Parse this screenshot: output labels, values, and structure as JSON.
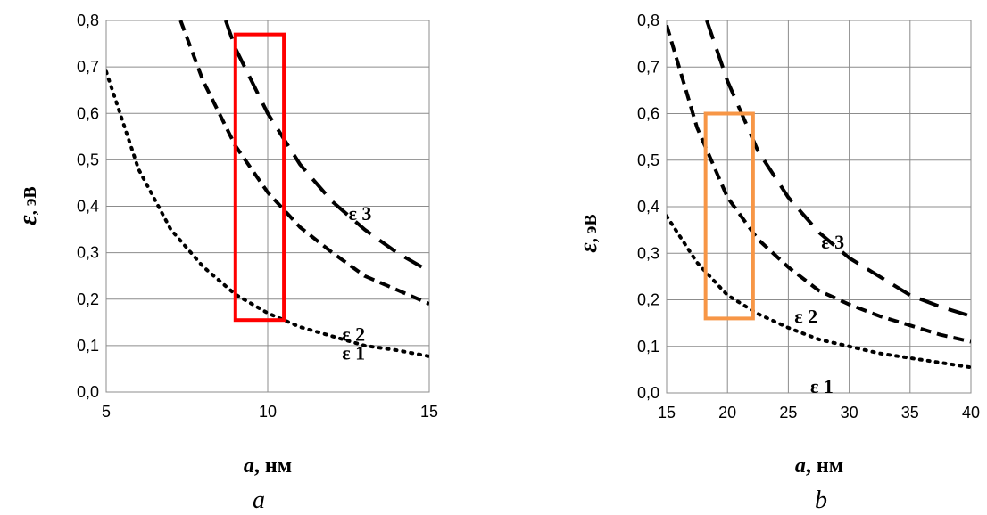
{
  "chart_data": [
    {
      "type": "line",
      "panel_caption": "a",
      "xlabel_var": "a",
      "xlabel_unit": ", нм",
      "ylabel_var": "ε",
      "ylabel_unit": ", эВ",
      "xlim": [
        5,
        15
      ],
      "ylim": [
        0,
        0.8
      ],
      "xticks": [
        5,
        10,
        15
      ],
      "xtick_labels": [
        "5",
        "10",
        "15"
      ],
      "yticks": [
        0,
        0.1,
        0.2,
        0.3,
        0.4,
        0.5,
        0.6,
        0.7,
        0.8
      ],
      "ytick_labels": [
        "0,0",
        "0,1",
        "0,2",
        "0,3",
        "0,4",
        "0,5",
        "0,6",
        "0,7",
        "0,8"
      ],
      "grid": true,
      "series": [
        {
          "name": "ε 1",
          "style": "dotted",
          "x": [
            5,
            6,
            7,
            8,
            9,
            10,
            11,
            12,
            13,
            14,
            15
          ],
          "y": [
            0.69,
            0.48,
            0.35,
            0.27,
            0.21,
            0.17,
            0.14,
            0.12,
            0.1,
            0.09,
            0.077
          ]
        },
        {
          "name": "ε 2",
          "style": "dashed",
          "x": [
            7.3,
            8,
            9,
            10,
            11,
            12,
            13,
            14,
            15
          ],
          "y": [
            0.8,
            0.67,
            0.53,
            0.43,
            0.355,
            0.3,
            0.25,
            0.22,
            0.19
          ]
        },
        {
          "name": "ε 3",
          "style": "long-dashed",
          "x": [
            8.7,
            9,
            10,
            11,
            12,
            13,
            14,
            15
          ],
          "y": [
            0.8,
            0.74,
            0.6,
            0.49,
            0.41,
            0.35,
            0.3,
            0.26
          ]
        }
      ],
      "highlight_box": {
        "x": [
          9,
          10.5
        ],
        "y": [
          0.155,
          0.77
        ],
        "color": "#ff0000"
      },
      "series_labels": [
        {
          "text": "ε 3",
          "x": 12.5,
          "y": 0.37
        },
        {
          "text": "ε 2",
          "x": 12.3,
          "y": 0.11
        },
        {
          "text": "ε 1",
          "x": 12.3,
          "y": 0.07
        }
      ]
    },
    {
      "type": "line",
      "panel_caption": "b",
      "xlabel_var": "a",
      "xlabel_unit": ", нм",
      "ylabel_var": "ε",
      "ylabel_unit": ", эВ",
      "xlim": [
        15,
        40
      ],
      "ylim": [
        0,
        0.8
      ],
      "xticks": [
        15,
        20,
        25,
        30,
        35,
        40
      ],
      "xtick_labels": [
        "15",
        "20",
        "25",
        "30",
        "35",
        "40"
      ],
      "yticks": [
        0,
        0.1,
        0.2,
        0.3,
        0.4,
        0.5,
        0.6,
        0.7,
        0.8
      ],
      "ytick_labels": [
        "0,0",
        "0,1",
        "0,2",
        "0,3",
        "0,4",
        "0,5",
        "0,6",
        "0,7",
        "0,8"
      ],
      "grid": true,
      "series": [
        {
          "name": "ε 1",
          "style": "dotted",
          "x": [
            15,
            17.5,
            20,
            22.5,
            25,
            27.5,
            30,
            32.5,
            35,
            37.5,
            40
          ],
          "y": [
            0.38,
            0.28,
            0.21,
            0.17,
            0.14,
            0.115,
            0.1,
            0.085,
            0.075,
            0.065,
            0.055
          ]
        },
        {
          "name": "ε 2",
          "style": "dashed",
          "x": [
            15,
            17.5,
            20,
            22.5,
            25,
            27.5,
            30,
            32.5,
            35,
            37.5,
            40
          ],
          "y": [
            0.79,
            0.57,
            0.42,
            0.33,
            0.27,
            0.22,
            0.19,
            0.165,
            0.145,
            0.125,
            0.11
          ]
        },
        {
          "name": "ε 3",
          "style": "long-dashed",
          "x": [
            18.3,
            20,
            22.5,
            25,
            27.5,
            30,
            32.5,
            35,
            37.5,
            40
          ],
          "y": [
            0.8,
            0.67,
            0.52,
            0.42,
            0.345,
            0.29,
            0.25,
            0.21,
            0.185,
            0.165
          ]
        }
      ],
      "highlight_box": {
        "x": [
          18.2,
          22.1
        ],
        "y": [
          0.16,
          0.6
        ],
        "color": "#f79646"
      },
      "series_labels": [
        {
          "text": "ε 3",
          "x": 27.7,
          "y": 0.31
        },
        {
          "text": "ε 2",
          "x": 25.5,
          "y": 0.15
        },
        {
          "text": "ε 1",
          "x": 26.8,
          "y": 0.0
        }
      ]
    }
  ]
}
